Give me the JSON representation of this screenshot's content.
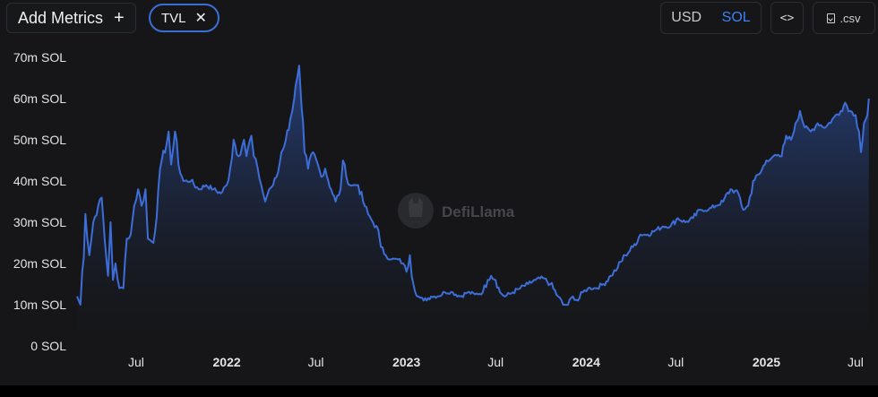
{
  "toolbar": {
    "add_metrics_label": "Add Metrics",
    "add_icon": "plus-icon",
    "metric_pill_label": "TVL",
    "remove_icon": "close-icon",
    "currency_options": [
      "USD",
      "SOL"
    ],
    "currency_selected": "SOL",
    "embed_icon": "code-icon",
    "embed_label": "<>",
    "csv_label": ".csv",
    "csv_icon": "download-file-icon"
  },
  "watermark": {
    "label": "DefiLlama",
    "icon": "llama-logo-icon"
  },
  "colors": {
    "line": "#3d6ed8",
    "fill_top": "#2b4d9a",
    "fill_bottom": "#161618",
    "accent": "#3b82f6",
    "background": "#161618"
  },
  "chart_data": {
    "type": "area",
    "title": "",
    "xlabel": "",
    "ylabel": "",
    "ylim": [
      0,
      70
    ],
    "y_ticks": [
      "0 SOL",
      "10m SOL",
      "20m SOL",
      "30m SOL",
      "40m SOL",
      "50m SOL",
      "60m SOL",
      "70m SOL"
    ],
    "y_tick_values": [
      0,
      10,
      20,
      30,
      40,
      50,
      60,
      70
    ],
    "x_ticks": [
      {
        "label": "Jul",
        "date": "2021-07-01",
        "bold": false
      },
      {
        "label": "2022",
        "date": "2022-01-01",
        "bold": true
      },
      {
        "label": "Jul",
        "date": "2022-07-01",
        "bold": false
      },
      {
        "label": "2023",
        "date": "2023-01-01",
        "bold": true
      },
      {
        "label": "Jul",
        "date": "2023-07-01",
        "bold": false
      },
      {
        "label": "2024",
        "date": "2024-01-01",
        "bold": true
      },
      {
        "label": "Jul",
        "date": "2024-07-01",
        "bold": false
      },
      {
        "label": "2025",
        "date": "2025-01-01",
        "bold": true
      },
      {
        "label": "Jul",
        "date": "2025-07-01",
        "bold": false
      }
    ],
    "xlim": [
      "2021-03-03",
      "2025-08-01"
    ],
    "series": [
      {
        "name": "TVL",
        "unit": "m SOL",
        "points": [
          [
            "2021-03-03",
            12
          ],
          [
            "2021-03-10",
            10
          ],
          [
            "2021-03-20",
            32
          ],
          [
            "2021-03-28",
            22
          ],
          [
            "2021-04-05",
            30
          ],
          [
            "2021-04-15",
            34
          ],
          [
            "2021-04-22",
            36
          ],
          [
            "2021-04-28",
            26
          ],
          [
            "2021-05-05",
            17
          ],
          [
            "2021-05-10",
            30
          ],
          [
            "2021-05-15",
            16
          ],
          [
            "2021-05-20",
            20
          ],
          [
            "2021-05-28",
            14
          ],
          [
            "2021-06-05",
            14
          ],
          [
            "2021-06-12",
            26
          ],
          [
            "2021-06-20",
            27
          ],
          [
            "2021-06-27",
            34
          ],
          [
            "2021-07-05",
            38
          ],
          [
            "2021-07-12",
            34
          ],
          [
            "2021-07-20",
            38
          ],
          [
            "2021-07-25",
            26
          ],
          [
            "2021-08-05",
            25
          ],
          [
            "2021-08-15",
            38
          ],
          [
            "2021-08-22",
            45
          ],
          [
            "2021-09-01",
            49
          ],
          [
            "2021-09-05",
            52
          ],
          [
            "2021-09-10",
            44
          ],
          [
            "2021-09-18",
            52
          ],
          [
            "2021-09-25",
            44
          ],
          [
            "2021-10-05",
            40
          ],
          [
            "2021-10-20",
            40
          ],
          [
            "2021-11-05",
            38
          ],
          [
            "2021-11-20",
            39
          ],
          [
            "2021-12-05",
            38
          ],
          [
            "2021-12-20",
            37
          ],
          [
            "2022-01-01",
            39
          ],
          [
            "2022-01-08",
            43
          ],
          [
            "2022-01-15",
            50
          ],
          [
            "2022-01-25",
            46
          ],
          [
            "2022-02-05",
            50
          ],
          [
            "2022-02-10",
            46
          ],
          [
            "2022-02-20",
            51
          ],
          [
            "2022-02-25",
            46
          ],
          [
            "2022-03-05",
            43
          ],
          [
            "2022-03-12",
            39
          ],
          [
            "2022-03-20",
            35
          ],
          [
            "2022-03-28",
            38
          ],
          [
            "2022-04-05",
            39
          ],
          [
            "2022-04-15",
            42
          ],
          [
            "2022-04-22",
            47
          ],
          [
            "2022-05-01",
            50
          ],
          [
            "2022-05-10",
            55
          ],
          [
            "2022-05-18",
            60
          ],
          [
            "2022-05-24",
            65
          ],
          [
            "2022-05-28",
            68
          ],
          [
            "2022-06-02",
            58
          ],
          [
            "2022-06-08",
            47
          ],
          [
            "2022-06-15",
            43
          ],
          [
            "2022-06-25",
            47
          ],
          [
            "2022-07-05",
            44
          ],
          [
            "2022-07-12",
            41
          ],
          [
            "2022-07-20",
            43
          ],
          [
            "2022-08-01",
            38
          ],
          [
            "2022-08-10",
            35
          ],
          [
            "2022-08-20",
            38
          ],
          [
            "2022-08-25",
            45
          ],
          [
            "2022-09-01",
            41
          ],
          [
            "2022-09-08",
            39
          ],
          [
            "2022-09-15",
            39
          ],
          [
            "2022-09-25",
            39
          ],
          [
            "2022-10-05",
            35
          ],
          [
            "2022-10-15",
            32
          ],
          [
            "2022-10-25",
            30
          ],
          [
            "2022-11-05",
            28
          ],
          [
            "2022-11-10",
            24
          ],
          [
            "2022-11-20",
            22
          ],
          [
            "2022-12-01",
            21
          ],
          [
            "2022-12-15",
            21
          ],
          [
            "2022-12-25",
            20
          ],
          [
            "2023-01-01",
            18
          ],
          [
            "2023-01-08",
            22
          ],
          [
            "2023-01-15",
            15
          ],
          [
            "2023-01-25",
            12
          ],
          [
            "2023-02-05",
            11
          ],
          [
            "2023-02-20",
            12
          ],
          [
            "2023-03-05",
            12
          ],
          [
            "2023-03-20",
            13
          ],
          [
            "2023-04-05",
            13
          ],
          [
            "2023-04-20",
            12
          ],
          [
            "2023-05-05",
            13
          ],
          [
            "2023-05-20",
            12.5
          ],
          [
            "2023-06-05",
            13
          ],
          [
            "2023-06-15",
            16
          ],
          [
            "2023-06-22",
            17
          ],
          [
            "2023-07-01",
            16
          ],
          [
            "2023-07-10",
            13
          ],
          [
            "2023-07-20",
            12
          ],
          [
            "2023-08-05",
            13
          ],
          [
            "2023-08-20",
            14
          ],
          [
            "2023-09-05",
            15
          ],
          [
            "2023-09-20",
            16
          ],
          [
            "2023-10-05",
            16.5
          ],
          [
            "2023-10-20",
            15
          ],
          [
            "2023-11-05",
            12
          ],
          [
            "2023-11-15",
            10
          ],
          [
            "2023-11-25",
            10
          ],
          [
            "2023-12-05",
            12
          ],
          [
            "2023-12-15",
            11
          ],
          [
            "2023-12-25",
            13
          ],
          [
            "2024-01-05",
            14
          ],
          [
            "2024-01-20",
            14
          ],
          [
            "2024-02-05",
            15
          ],
          [
            "2024-02-20",
            17
          ],
          [
            "2024-03-05",
            19
          ],
          [
            "2024-03-20",
            22
          ],
          [
            "2024-04-05",
            24
          ],
          [
            "2024-04-20",
            27
          ],
          [
            "2024-05-05",
            27
          ],
          [
            "2024-05-20",
            28
          ],
          [
            "2024-06-05",
            29
          ],
          [
            "2024-06-20",
            29
          ],
          [
            "2024-07-05",
            31
          ],
          [
            "2024-07-20",
            30
          ],
          [
            "2024-08-05",
            31
          ],
          [
            "2024-08-20",
            33
          ],
          [
            "2024-09-05",
            33
          ],
          [
            "2024-09-20",
            34
          ],
          [
            "2024-10-05",
            35
          ],
          [
            "2024-10-20",
            38
          ],
          [
            "2024-11-05",
            37
          ],
          [
            "2024-11-15",
            33
          ],
          [
            "2024-11-25",
            34
          ],
          [
            "2024-12-05",
            40
          ],
          [
            "2024-12-20",
            42
          ],
          [
            "2025-01-01",
            45
          ],
          [
            "2025-01-15",
            46
          ],
          [
            "2025-02-01",
            46
          ],
          [
            "2025-02-10",
            51
          ],
          [
            "2025-02-20",
            50
          ],
          [
            "2025-03-01",
            54
          ],
          [
            "2025-03-10",
            57
          ],
          [
            "2025-03-20",
            53
          ],
          [
            "2025-04-01",
            52
          ],
          [
            "2025-04-15",
            54
          ],
          [
            "2025-05-01",
            53
          ],
          [
            "2025-05-15",
            55
          ],
          [
            "2025-06-01",
            57
          ],
          [
            "2025-06-10",
            59
          ],
          [
            "2025-06-20",
            57
          ],
          [
            "2025-07-01",
            56
          ],
          [
            "2025-07-08",
            52
          ],
          [
            "2025-07-12",
            47
          ],
          [
            "2025-07-18",
            54
          ],
          [
            "2025-07-25",
            56
          ],
          [
            "2025-07-28",
            60
          ]
        ]
      }
    ],
    "grid": false,
    "legend": "none"
  }
}
